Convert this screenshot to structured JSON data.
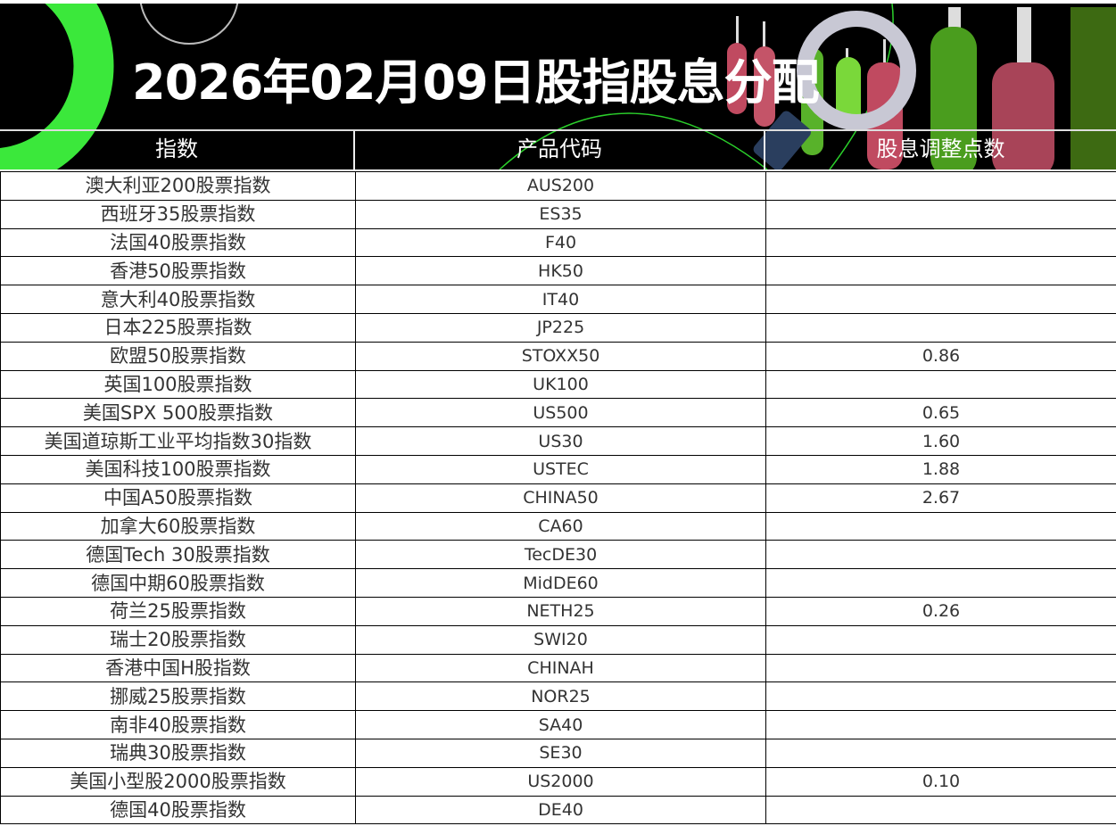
{
  "banner": {
    "title": "2026年02月09日股指股息分配",
    "accent": "#3be83b"
  },
  "table": {
    "headers": [
      "指数",
      "产品代码",
      "股息调整点数"
    ],
    "rows": [
      {
        "name": "澳大利亚200股票指数",
        "code": "AUS200",
        "points": ""
      },
      {
        "name": "西班牙35股票指数",
        "code": "ES35",
        "points": ""
      },
      {
        "name": "法国40股票指数",
        "code": "F40",
        "points": ""
      },
      {
        "name": "香港50股票指数",
        "code": "HK50",
        "points": ""
      },
      {
        "name": "意大利40股票指数",
        "code": "IT40",
        "points": ""
      },
      {
        "name": "日本225股票指数",
        "code": "JP225",
        "points": ""
      },
      {
        "name": "欧盟50股票指数",
        "code": "STOXX50",
        "points": "0.86"
      },
      {
        "name": "英国100股票指数",
        "code": "UK100",
        "points": ""
      },
      {
        "name": "美国SPX 500股票指数",
        "code": "US500",
        "points": "0.65"
      },
      {
        "name": "美国道琼斯工业平均指数30指数",
        "code": "US30",
        "points": "1.60"
      },
      {
        "name": "美国科技100股票指数",
        "code": "USTEC",
        "points": "1.88"
      },
      {
        "name": "中国A50股票指数",
        "code": "CHINA50",
        "points": "2.67"
      },
      {
        "name": "加拿大60股票指数",
        "code": "CA60",
        "points": ""
      },
      {
        "name": "德国Tech 30股票指数",
        "code": "TecDE30",
        "points": ""
      },
      {
        "name": "德国中期60股票指数",
        "code": "MidDE60",
        "points": ""
      },
      {
        "name": "荷兰25股票指数",
        "code": "NETH25",
        "points": "0.26"
      },
      {
        "name": "瑞士20股票指数",
        "code": "SWI20",
        "points": ""
      },
      {
        "name": "香港中国H股指数",
        "code": "CHINAH",
        "points": ""
      },
      {
        "name": "挪威25股票指数",
        "code": "NOR25",
        "points": ""
      },
      {
        "name": "南非40股票指数",
        "code": "SA40",
        "points": ""
      },
      {
        "name": "瑞典30股票指数",
        "code": "SE30",
        "points": ""
      },
      {
        "name": "美国小型股2000股票指数",
        "code": "US2000",
        "points": "0.10"
      },
      {
        "name": "德国40股票指数",
        "code": "DE40",
        "points": ""
      }
    ]
  }
}
